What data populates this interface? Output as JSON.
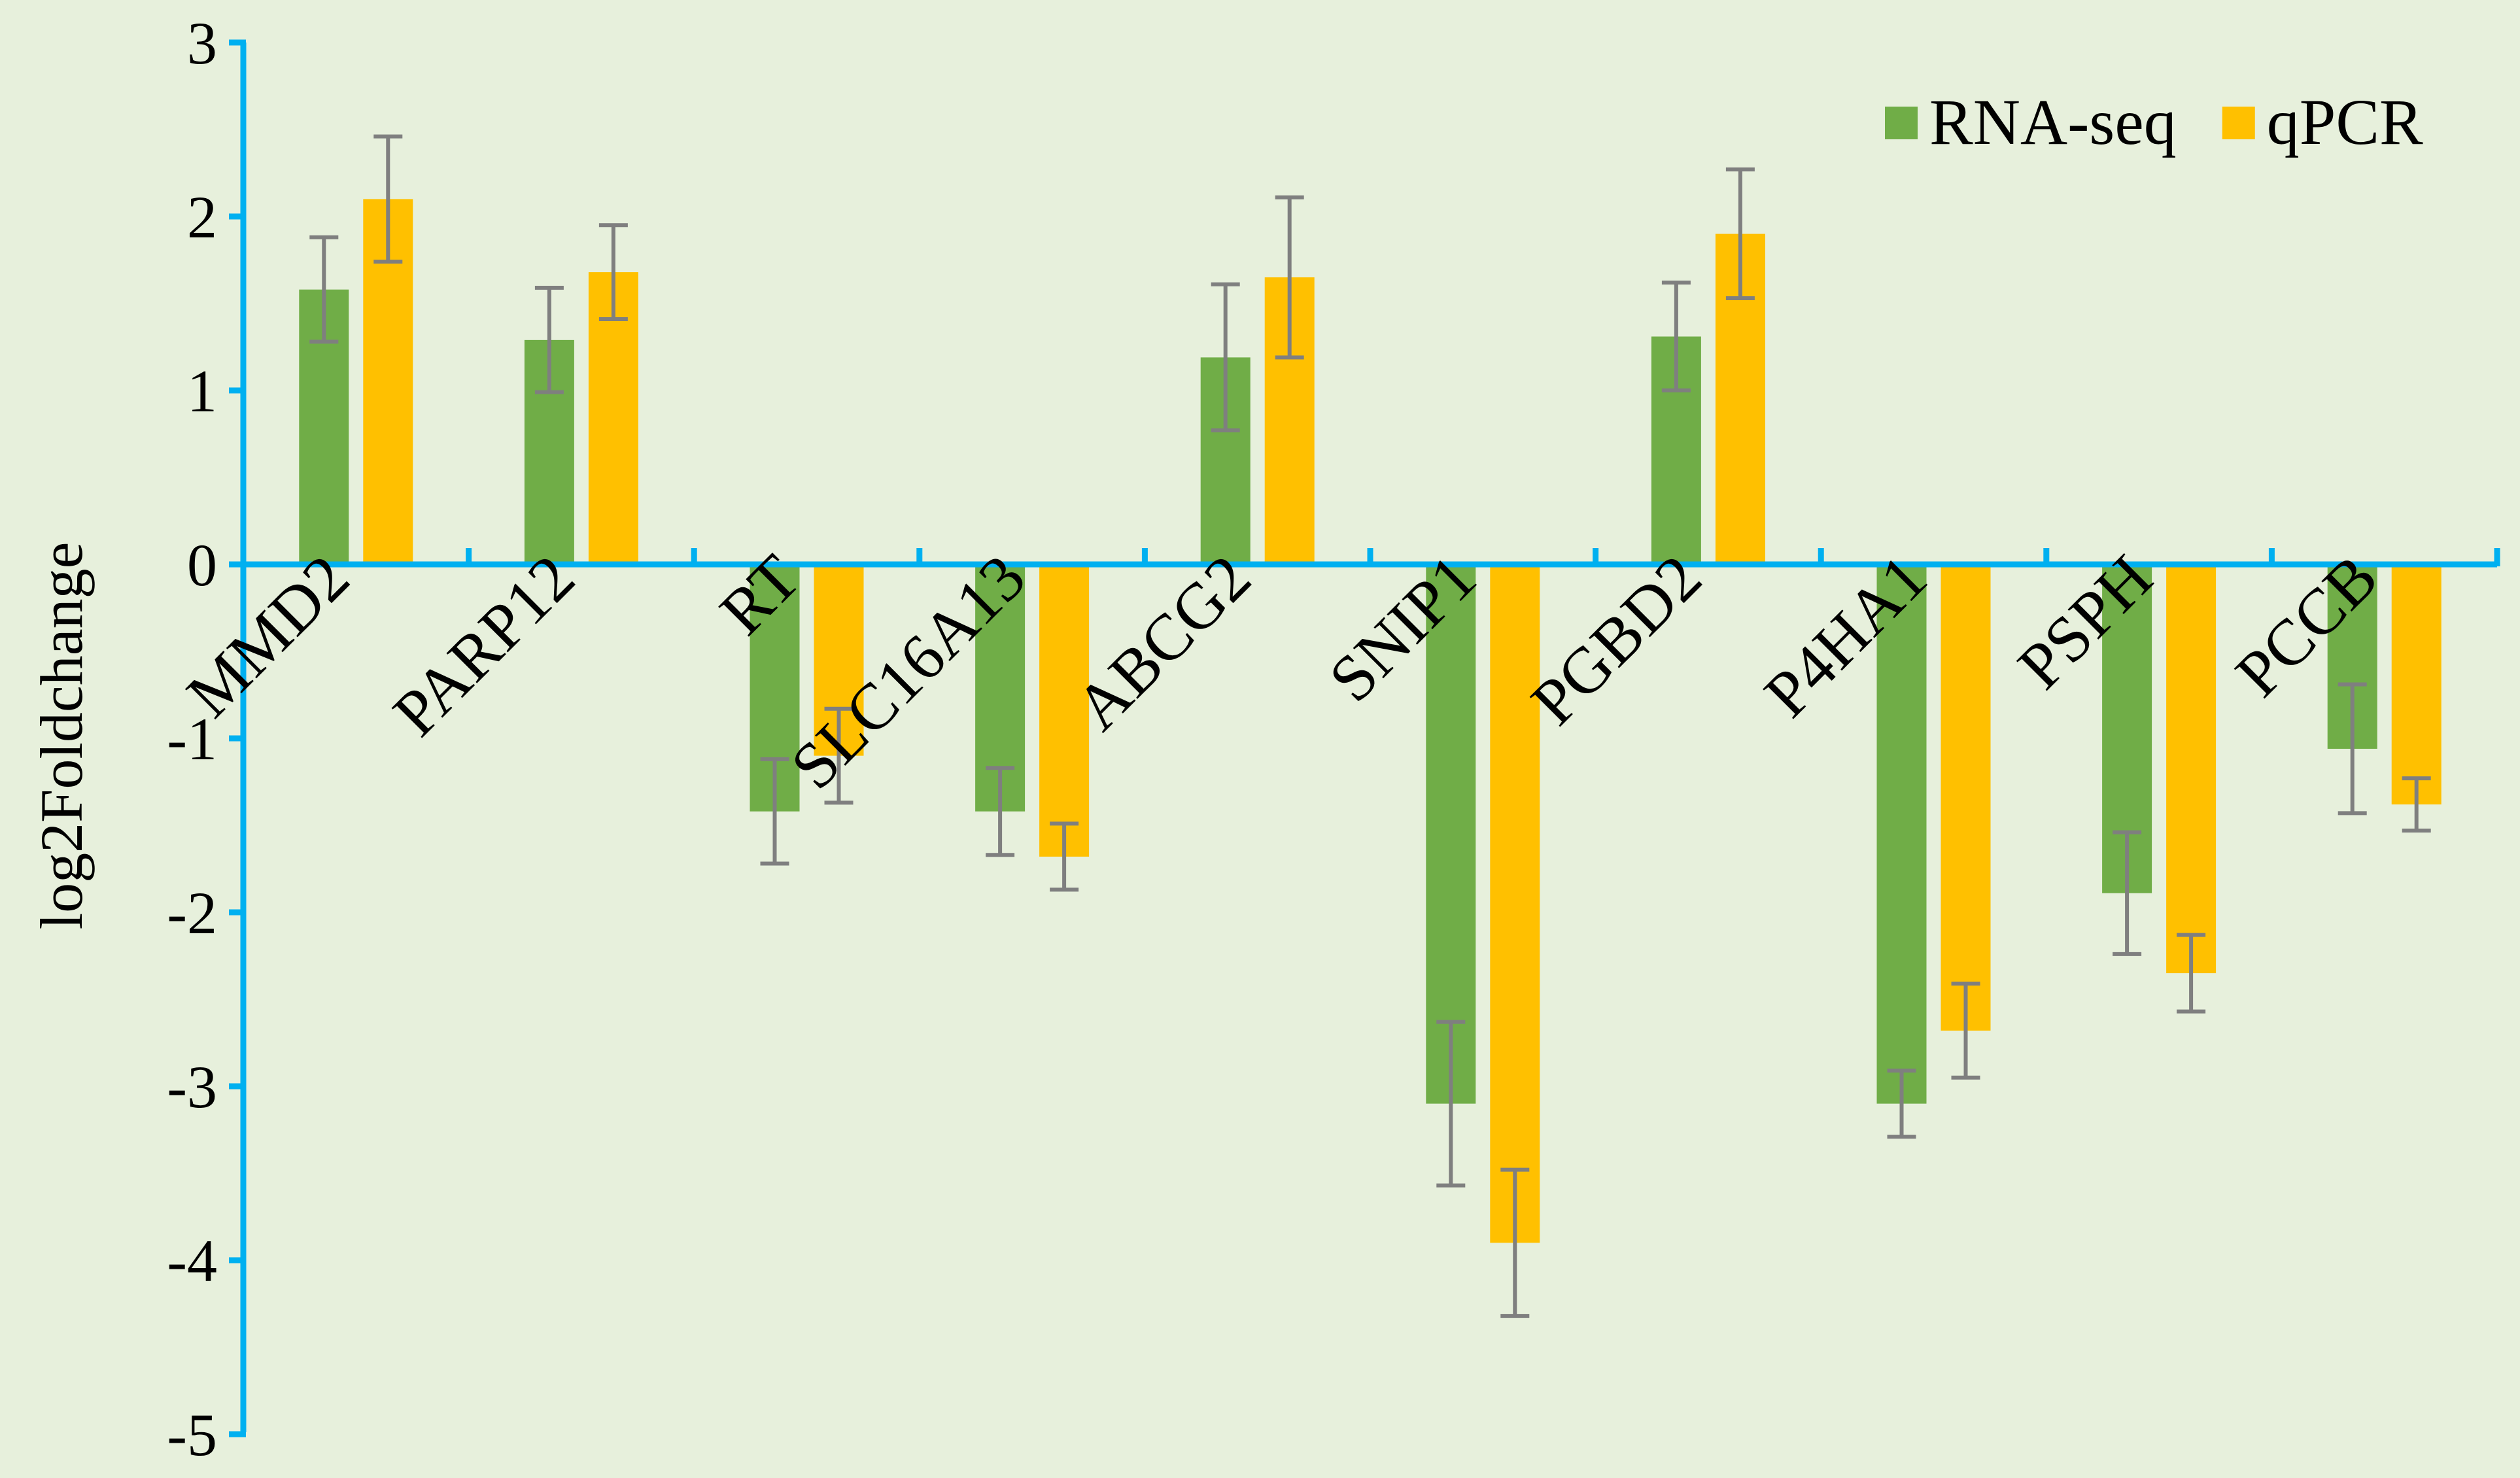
{
  "chart_data": {
    "type": "bar",
    "ylabel": "log2Foldchange",
    "ylim": [
      -5,
      3
    ],
    "yticks": [
      3,
      2,
      1,
      0,
      -1,
      -2,
      -3,
      -4,
      -5
    ],
    "grid": false,
    "legend": "top-right",
    "categories": [
      "MMD2",
      "PARP12",
      "RT",
      "SLC16A13",
      "ABCG2",
      "SNIP1",
      "PGBD2",
      "P4HA1",
      "PSPH",
      "PCCB"
    ],
    "series": [
      {
        "name": "RNA-seq",
        "color": "#70ad47",
        "values": [
          1.58,
          1.29,
          -1.42,
          -1.42,
          1.19,
          -3.1,
          1.31,
          -3.1,
          -1.89,
          -1.06
        ],
        "errors": [
          0.3,
          0.3,
          0.3,
          0.25,
          0.42,
          0.47,
          0.31,
          0.19,
          0.35,
          0.37
        ]
      },
      {
        "name": "qPCR",
        "color": "#ffc000",
        "values": [
          2.1,
          1.68,
          -1.1,
          -1.68,
          1.65,
          -3.9,
          1.9,
          -2.68,
          -2.35,
          -1.38
        ],
        "errors": [
          0.36,
          0.27,
          0.27,
          0.19,
          0.46,
          0.42,
          0.37,
          0.27,
          0.22,
          0.15
        ]
      }
    ],
    "colors": {
      "axis": "#00b0f0",
      "error_bar": "#7f7f7f",
      "background": "#e7f0dc"
    }
  }
}
